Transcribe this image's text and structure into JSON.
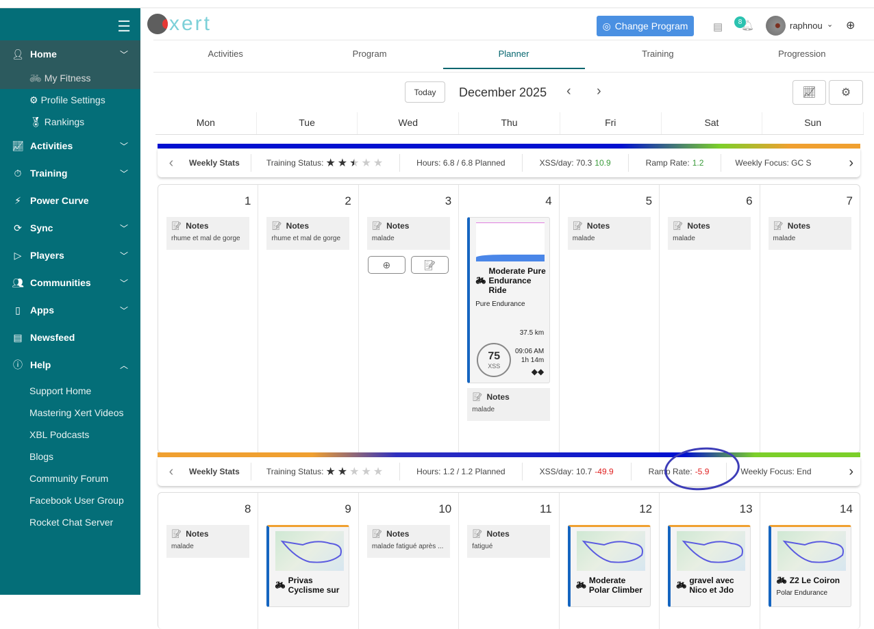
{
  "sidebar": {
    "items": [
      {
        "label": "Home",
        "icon": "user-icon",
        "expanded": true,
        "children": [
          {
            "label": "My Fitness",
            "icon": "bike-icon",
            "active": true
          },
          {
            "label": "Profile Settings",
            "icon": "gear-icon"
          },
          {
            "label": "Rankings",
            "icon": "medal-icon"
          }
        ]
      },
      {
        "label": "Activities",
        "icon": "chart-line-icon",
        "chev": "down"
      },
      {
        "label": "Training",
        "icon": "stopwatch-icon",
        "chev": "down"
      },
      {
        "label": "Power Curve",
        "icon": "bolt-icon"
      },
      {
        "label": "Sync",
        "icon": "sync-icon",
        "chev": "down"
      },
      {
        "label": "Players",
        "icon": "play-icon",
        "chev": "down"
      },
      {
        "label": "Communities",
        "icon": "users-icon",
        "chev": "down"
      },
      {
        "label": "Apps",
        "icon": "phone-icon",
        "chev": "down"
      },
      {
        "label": "Newsfeed",
        "icon": "newspaper-icon"
      },
      {
        "label": "Help",
        "icon": "help-icon",
        "chev": "up"
      }
    ],
    "help_links": [
      "Support Home",
      "Mastering Xert Videos",
      "XBL Podcasts",
      "Blogs",
      "Community Forum",
      "Facebook User Group",
      "Rocket Chat Server"
    ]
  },
  "header": {
    "logo": "xert",
    "change_program": "Change Program",
    "notification_count": "8",
    "username": "raphnou"
  },
  "tabs": [
    "Activities",
    "Program",
    "Planner",
    "Training",
    "Progression"
  ],
  "active_tab": "Planner",
  "calendar": {
    "today": "Today",
    "month": "December 2025",
    "weekdays": [
      "Mon",
      "Tue",
      "Wed",
      "Thu",
      "Fri",
      "Sat",
      "Sun"
    ]
  },
  "weeks": [
    {
      "stats": {
        "label": "Weekly Stats",
        "training_status": "Training Status:",
        "stars": 2.5,
        "hours": "Hours: 6.8 / 6.8 Planned",
        "xss": "XSS/day: 70.3",
        "xss_delta": "10.9",
        "xss_delta_color": "#3a9b3a",
        "ramp": "Ramp Rate:",
        "ramp_value": "1.2",
        "ramp_color": "#3a9b3a",
        "focus": "Weekly Focus: GC S"
      },
      "days": [
        {
          "num": "1",
          "note": "rhume et mal de gorge"
        },
        {
          "num": "2",
          "note": "rhume et mal de gorge"
        },
        {
          "num": "3",
          "note": "malade",
          "add_buttons": true
        },
        {
          "num": "4",
          "workout": {
            "title": "Moderate Pure Endurance Ride",
            "focus": "Pure Endurance",
            "distance": "37.5 km",
            "time": "09:06 AM",
            "duration": "1h 14m",
            "xss": "75",
            "xss_label": "XSS",
            "difficulty": "◆◆"
          },
          "note": "malade"
        },
        {
          "num": "5",
          "note": "malade"
        },
        {
          "num": "6",
          "note": "malade"
        },
        {
          "num": "7",
          "note": "malade"
        }
      ]
    },
    {
      "stats": {
        "label": "Weekly Stats",
        "training_status": "Training Status:",
        "stars": 2,
        "hours": "Hours: 1.2 / 1.2 Planned",
        "xss": "XSS/day: 10.7",
        "xss_delta": "-49.9",
        "xss_delta_color": "#e02020",
        "ramp": "Ramp Rate:",
        "ramp_value": "-5.9",
        "ramp_color": "#e02020",
        "focus": "Weekly Focus: End"
      },
      "days": [
        {
          "num": "8",
          "note": "malade"
        },
        {
          "num": "9",
          "activity": {
            "title": "Privas Cyclisme sur"
          }
        },
        {
          "num": "10",
          "note": "malade fatigué après ..."
        },
        {
          "num": "11",
          "note": "fatigué"
        },
        {
          "num": "12",
          "activity": {
            "title": "Moderate Polar Climber"
          }
        },
        {
          "num": "13",
          "activity": {
            "title": "gravel avec Nico et Jdo"
          }
        },
        {
          "num": "14",
          "activity": {
            "title": "Z2 Le Coiron",
            "focus": "Polar Endurance"
          }
        }
      ]
    }
  ],
  "notes_label": "Notes",
  "colors": {
    "sidebar": "#046e78",
    "accent": "#04656e",
    "button": "#4a90e2",
    "annotation": "#3d3db8"
  }
}
